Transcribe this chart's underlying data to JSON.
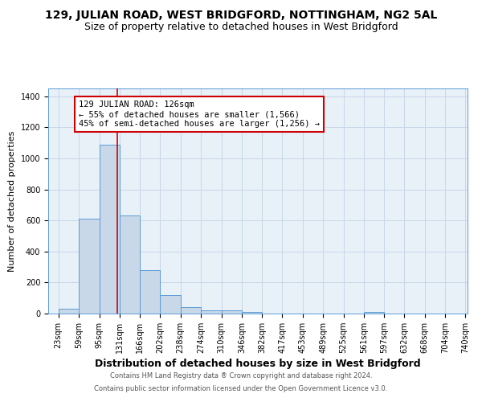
{
  "title": "129, JULIAN ROAD, WEST BRIDGFORD, NOTTINGHAM, NG2 5AL",
  "subtitle": "Size of property relative to detached houses in West Bridgford",
  "xlabel": "Distribution of detached houses by size in West Bridgford",
  "ylabel": "Number of detached properties",
  "footer_line1": "Contains HM Land Registry data ® Crown copyright and database right 2024.",
  "footer_line2": "Contains public sector information licensed under the Open Government Licence v3.0.",
  "bar_edges": [
    23,
    59,
    95,
    131,
    166,
    202,
    238,
    274,
    310,
    346,
    382,
    417,
    453,
    489,
    525,
    561,
    597,
    632,
    668,
    704,
    740
  ],
  "bar_heights": [
    30,
    610,
    1090,
    630,
    280,
    120,
    42,
    22,
    22,
    12,
    0,
    0,
    0,
    0,
    0,
    8,
    0,
    0,
    0,
    0
  ],
  "bar_color": "#c8d8e8",
  "bar_edge_color": "#5b9bd5",
  "grid_color": "#c8d8e8",
  "bg_color": "#e8f0f8",
  "vline_x": 126,
  "vline_color": "#cc0000",
  "annotation_text": "129 JULIAN ROAD: 126sqm\n← 55% of detached houses are smaller (1,566)\n45% of semi-detached houses are larger (1,256) →",
  "annotation_box_color": "#ffffff",
  "annotation_border_color": "#cc0000",
  "ylim": [
    0,
    1450
  ],
  "yticks": [
    0,
    200,
    400,
    600,
    800,
    1000,
    1200,
    1400
  ],
  "title_fontsize": 10,
  "subtitle_fontsize": 9,
  "xlabel_fontsize": 9,
  "ylabel_fontsize": 8,
  "tick_fontsize": 7,
  "annotation_fontsize": 7.5,
  "footer_fontsize": 6
}
